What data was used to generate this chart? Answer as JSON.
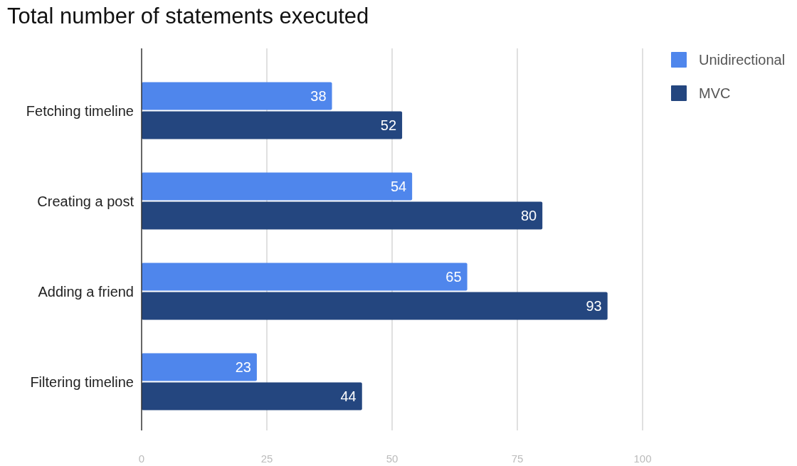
{
  "chart_data": {
    "type": "bar",
    "orientation": "horizontal",
    "title": "Total number of statements executed",
    "categories": [
      "Fetching timeline",
      "Creating a post",
      "Adding a friend",
      "Filtering timeline"
    ],
    "series": [
      {
        "name": "Unidirectional",
        "color": "#4f86ec",
        "values": [
          38,
          54,
          65,
          23
        ]
      },
      {
        "name": "MVC",
        "color": "#24467f",
        "values": [
          52,
          80,
          93,
          44
        ]
      }
    ],
    "xlim": [
      0,
      100
    ],
    "xticks": [
      0,
      25,
      50,
      75,
      100
    ],
    "grid": "x",
    "legend": "top right",
    "data_labels": true
  }
}
